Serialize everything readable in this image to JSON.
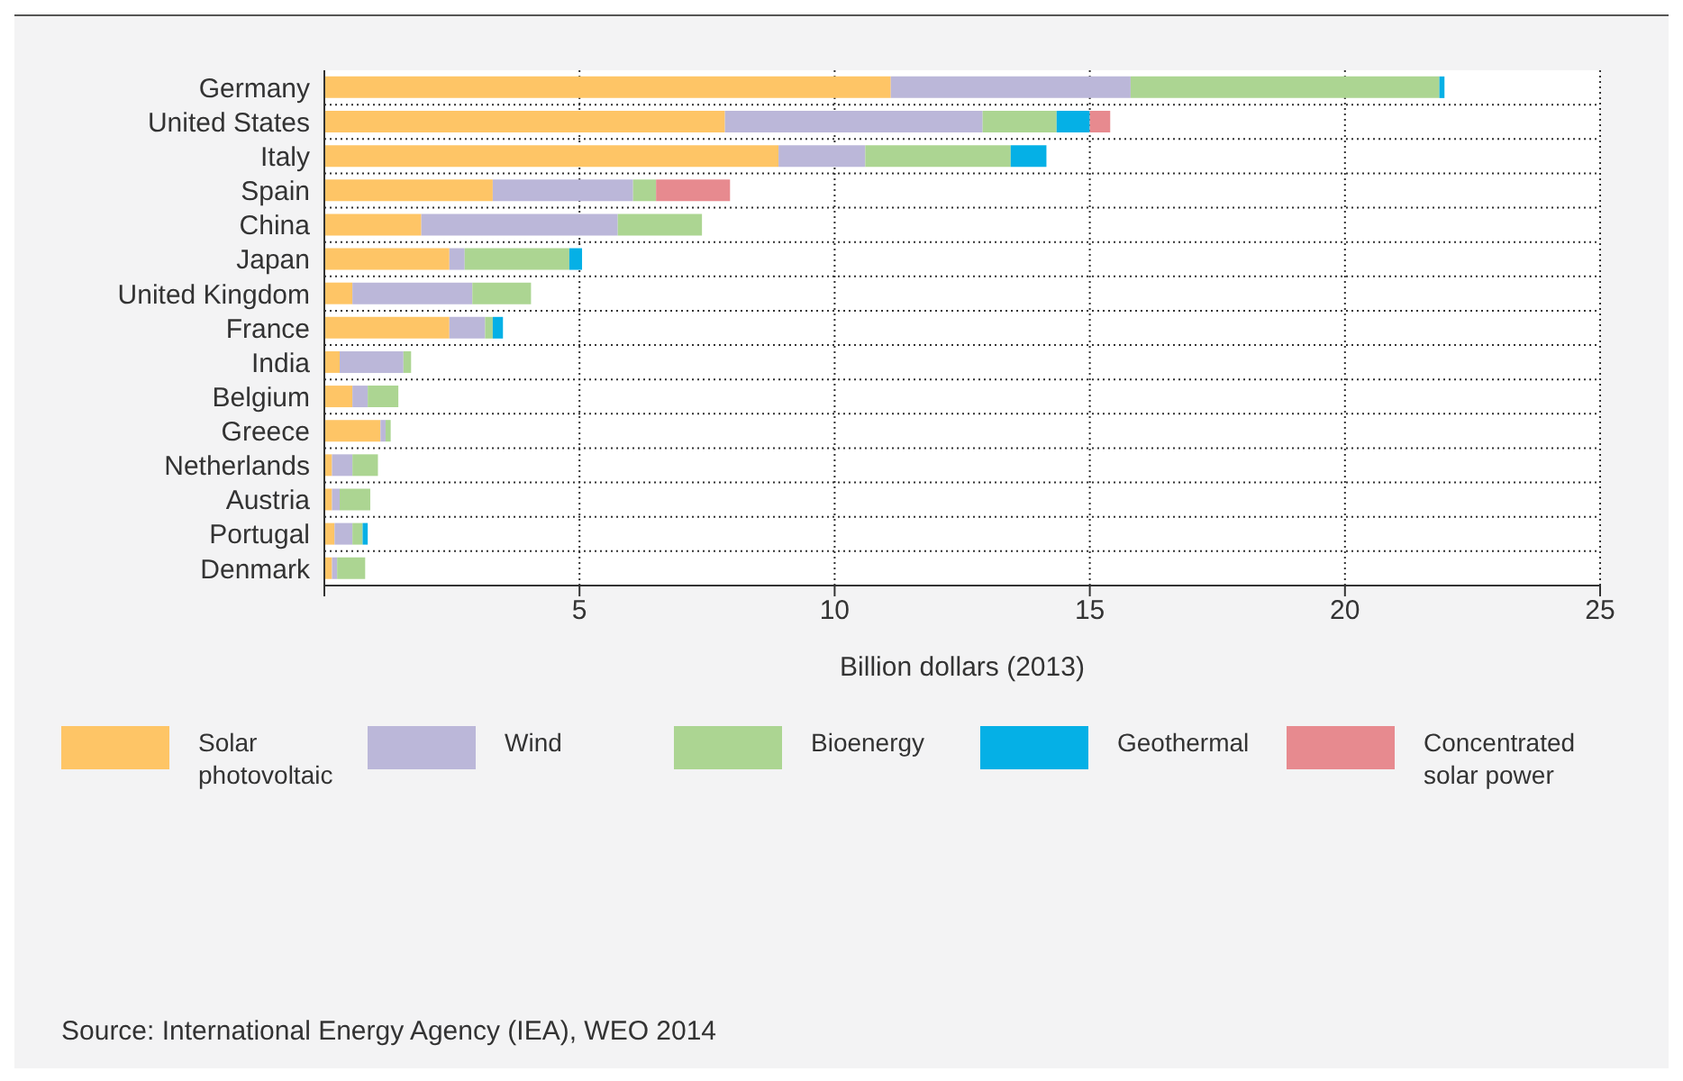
{
  "chart_data": {
    "type": "bar",
    "orientation": "horizontal",
    "stacked": true,
    "categories": [
      "Germany",
      "United States",
      "Italy",
      "Spain",
      "China",
      "Japan",
      "United Kingdom",
      "France",
      "India",
      "Belgium",
      "Greece",
      "Netherlands",
      "Austria",
      "Portugal",
      "Denmark"
    ],
    "series": [
      {
        "name": "Solar photovoltaic",
        "color": "#fec566",
        "values": [
          11.1,
          7.85,
          8.9,
          3.3,
          1.9,
          2.45,
          0.55,
          2.45,
          0.3,
          0.55,
          1.1,
          0.15,
          0.15,
          0.2,
          0.15
        ]
      },
      {
        "name": "Wind",
        "color": "#bbb7d9",
        "values": [
          4.7,
          5.05,
          1.7,
          2.75,
          3.85,
          0.3,
          2.35,
          0.7,
          1.25,
          0.3,
          0.1,
          0.4,
          0.15,
          0.35,
          0.1
        ]
      },
      {
        "name": "Bioenergy",
        "color": "#acd592",
        "values": [
          6.05,
          1.45,
          2.85,
          0.45,
          1.65,
          2.05,
          1.15,
          0.15,
          0.15,
          0.6,
          0.1,
          0.5,
          0.6,
          0.2,
          0.55
        ]
      },
      {
        "name": "Geothermal",
        "color": "#05b0e6",
        "values": [
          0.1,
          0.65,
          0.7,
          null,
          null,
          0.25,
          null,
          0.2,
          null,
          null,
          null,
          null,
          null,
          0.1,
          null
        ]
      },
      {
        "name": "Concentrated solar power",
        "color": "#e78a8f",
        "values": [
          null,
          0.4,
          null,
          1.45,
          null,
          null,
          null,
          null,
          null,
          null,
          null,
          null,
          null,
          null,
          null
        ]
      }
    ],
    "xlabel": "Billion dollars (2013)",
    "xlim": [
      0,
      25
    ],
    "xticks": [
      {
        "value": 0,
        "label": null
      },
      5,
      10,
      15,
      20,
      25
    ],
    "grid": true,
    "legend": "bottom",
    "annotations": [
      "Source: International Energy Agency (IEA), WEO 2014"
    ]
  }
}
